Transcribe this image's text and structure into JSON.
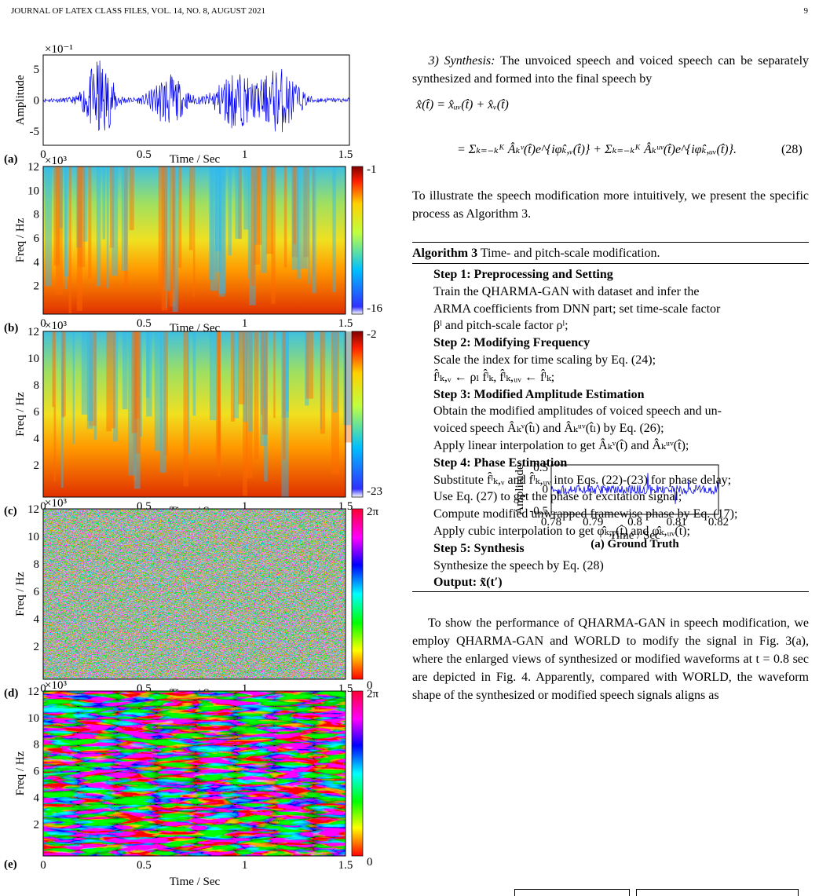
{
  "header": {
    "journal": "JOURNAL OF LATEX CLASS FILES, VOL. 14, NO. 8, AUGUST 2021",
    "page": "9"
  },
  "figure3": {
    "xticks": [
      "0",
      "0.5",
      "1",
      "1.5"
    ],
    "xlabel": "Time / Sec",
    "panels": [
      {
        "label": "(a)",
        "ylabel": "Amplitude",
        "scale": "×10⁻¹",
        "yticks": [
          "5",
          "0",
          "-5"
        ]
      },
      {
        "label": "(b)",
        "ylabel": "Freq / Hz",
        "scale": "×10³",
        "yticks": [
          "12",
          "10",
          "8",
          "6",
          "4",
          "2"
        ],
        "colorbar": [
          "-1",
          "-16"
        ]
      },
      {
        "label": "(c)",
        "ylabel": "Freq / Hz",
        "scale": "×10³",
        "yticks": [
          "12",
          "10",
          "8",
          "6",
          "4",
          "2"
        ],
        "colorbar": [
          "-2",
          "-23"
        ]
      },
      {
        "label": "(d)",
        "ylabel": "Freq / Hz",
        "scale": "×10³",
        "yticks": [
          "12",
          "10",
          "8",
          "6",
          "4",
          "2"
        ],
        "colorbar": [
          "2π",
          "0"
        ]
      },
      {
        "label": "(e)",
        "ylabel": "Freq / Hz",
        "scale": "×10³",
        "yticks": [
          "12",
          "10",
          "8",
          "6",
          "4",
          "2"
        ],
        "colorbar": [
          "2π",
          "0"
        ]
      }
    ]
  },
  "section": {
    "heading": "3) Synthesis:",
    "text": "The unvoiced speech and voiced speech can be separately synthesized and formed into the final speech by"
  },
  "equation": {
    "line1": "x̂(t̂) = x̂ᵤᵥ(t̂) + x̂ᵥ(t̂)",
    "line2": "= Σₖ₌₋ₖᴷ Âₖᵛ(t̂)e^{iφ̂ₖ,ᵥ(t̂)} + Σₖ₌₋ₖᴷ Âₖᵘᵛ(t̂)e^{iφ̂ₖ,ᵤᵥ(t̂)}.",
    "number": "(28)"
  },
  "paragraph1": "To illustrate the speech modification more intuitively, we present the specific process as Algorithm 3.",
  "algorithm": {
    "name": "Algorithm 3",
    "caption": "Time- and pitch-scale modification.",
    "lines": [
      {
        "bold": true,
        "text": "Step 1: Preprocessing and Setting"
      },
      {
        "bold": false,
        "text": "Train the QHARMA-GAN with dataset and infer the"
      },
      {
        "bold": false,
        "text": "ARMA coefficients from DNN part; set time-scale factor"
      },
      {
        "bold": false,
        "text": "βˡ and pitch-scale factor ρˡ;"
      },
      {
        "bold": true,
        "text": "Step 2: Modifying Frequency"
      },
      {
        "bold": false,
        "text": "Scale the index for time scaling by Eq. (24);"
      },
      {
        "bold": false,
        "text": "f̂ˡₖ,ᵥ ← ρₗ f̂ˡₖ,   f̂ˡₖ,ᵤᵥ ← f̂ˡₖ;"
      },
      {
        "bold": true,
        "text": "Step 3: Modified Amplitude Estimation"
      },
      {
        "bold": false,
        "text": "Obtain the modified amplitudes of voiced speech and un-"
      },
      {
        "bold": false,
        "text": "voiced speech Âₖᵛ(t̂ₗ) and Âₖᵘᵛ(t̂ₗ) by Eq. (26);"
      },
      {
        "bold": false,
        "text": "Apply linear interpolation to get Âₖᵛ(t̂) and Âₖᵘᵛ(t̂);"
      },
      {
        "bold": true,
        "text": "Step 4: Phase Estimation"
      },
      {
        "bold": false,
        "text": "Substitute f̂ˡₖ,ᵥ and f̂ˡₖ,ᵤᵥ into Eqs. (22)-(23) for phase delay;"
      },
      {
        "bold": false,
        "text": "Use Eq. (27) to get the phase of excitation signal;"
      },
      {
        "bold": false,
        "text": "Compute modified unwrapped framewise phase by Eq. (17);"
      },
      {
        "bold": false,
        "text": "Apply cubic interpolation to get φ̂ₖ,ᵥ(t̂) and φ̂ₖ,ᵤᵥ(t̂);"
      },
      {
        "bold": true,
        "text": "Step 5: Synthesis"
      },
      {
        "bold": false,
        "text": "Synthesize the speech by Eq. (28)"
      },
      {
        "bold": true,
        "text": "Output: x̃(t′)"
      }
    ]
  },
  "paragraph2": "To show the performance of QHARMA-GAN in speech modification, we employ QHARMA-GAN and WORLD to modify the signal in Fig. 3(a), where the enlarged views of synthesized or modified waveforms at t = 0.8 sec are depicted in Fig. 4. Apparently, compared with WORLD, the waveform shape of the synthesized or modified speech signals aligns as",
  "figure4": {
    "ylabel": "Amplitude",
    "yticks": [
      "0.5",
      "0",
      "-0.5"
    ],
    "xticks": [
      "0.78",
      "0.79",
      "0.8",
      "0.81",
      "0.82"
    ],
    "xlabel": "Time / Sec",
    "caption": "(a) Ground Truth"
  }
}
